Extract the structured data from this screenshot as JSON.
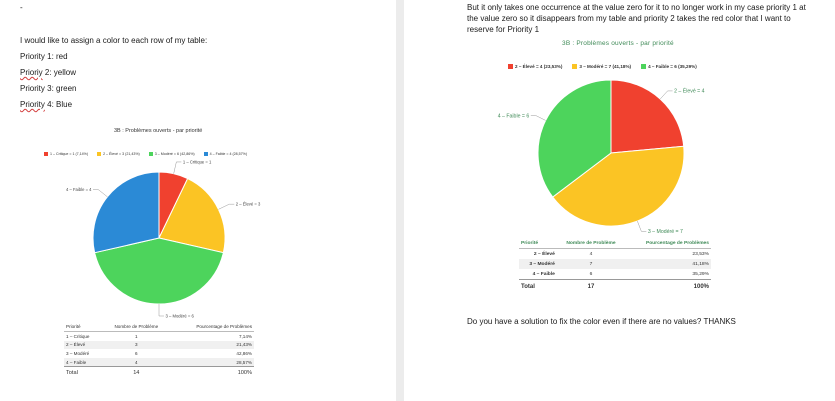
{
  "left_page": {
    "dash": "-",
    "intro": "I would like to assign a color to each row of my table:",
    "priority_lines": [
      {
        "word": "",
        "rest": "Priority 1: red"
      },
      {
        "word": "Prioriy",
        "rest": " 2: yellow"
      },
      {
        "word": "",
        "rest": "Priority 3: green"
      },
      {
        "word": "Priority",
        "rest": " 4: Blue"
      }
    ]
  },
  "right_page": {
    "para": [
      "But it only takes one occurrence at the value zero for it to no longer work in my case priority 1 at",
      "the value zero so it disappears from my table and priority 2 takes the red color that I want to",
      "reserve for Priority 1"
    ],
    "closing": "Do you have a solution to fix the color even if there are no values? THANKS"
  },
  "colors": {
    "red": "#f0412f",
    "yellow": "#fbc424",
    "green": "#4dd45c",
    "blue": "#2b8ad6"
  },
  "chart_data": [
    {
      "type": "pie",
      "title": "3B : Problèmes ouverts - par priorité",
      "legend": [
        {
          "text": "1 – Critique = 1 (7,14%)",
          "color": "#f0412f"
        },
        {
          "text": "2 – Élevé = 3 (21,43%)",
          "color": "#fbc424"
        },
        {
          "text": "3 – Modéré = 6 (42,86%)",
          "color": "#4dd45c"
        },
        {
          "text": "4 – Faible = 4 (28,57%)",
          "color": "#2b8ad6"
        }
      ],
      "slices": [
        {
          "label": "1 – Critique = 1",
          "value": 1,
          "color": "#f0412f"
        },
        {
          "label": "2 – Élevé = 3",
          "value": 3,
          "color": "#fbc424"
        },
        {
          "label": "3 – Modéré = 6",
          "value": 6,
          "color": "#4dd45c"
        },
        {
          "label": "4 – Faible = 4",
          "value": 4,
          "color": "#2b8ad6"
        }
      ],
      "table": {
        "headers": [
          "Priorité",
          "Nombre de Problème",
          "Pourcentage de Problèmes"
        ],
        "rows": [
          [
            "1 – Critique",
            "1",
            "7,14%"
          ],
          [
            "2 – Élevé",
            "3",
            "21,43%"
          ],
          [
            "3 – Modéré",
            "6",
            "42,86%"
          ],
          [
            "4 – Faible",
            "4",
            "28,57%"
          ]
        ],
        "total": [
          "Total",
          "14",
          "100%"
        ]
      }
    },
    {
      "type": "pie",
      "title": "3B : Problèmes ouverts - par priorité",
      "legend": [
        {
          "text": "2 – Élevé = 4 (23,53%)",
          "color": "#f0412f"
        },
        {
          "text": "3 – Modéré = 7 (41,18%)",
          "color": "#fbc424"
        },
        {
          "text": "4 – Faible = 6 (35,29%)",
          "color": "#4dd45c"
        }
      ],
      "slices": [
        {
          "label": "2 – Élevé = 4",
          "value": 4,
          "color": "#f0412f"
        },
        {
          "label": "3 – Modéré = 7",
          "value": 7,
          "color": "#fbc424"
        },
        {
          "label": "4 – Faible = 6",
          "value": 6,
          "color": "#4dd45c"
        }
      ],
      "table": {
        "headers": [
          "Priorité",
          "Nombre de Problème",
          "Pourcentage de Problèmes"
        ],
        "rows": [
          [
            "2 – Élevé",
            "4",
            "23,53%"
          ],
          [
            "3 – Modéré",
            "7",
            "41,18%"
          ],
          [
            "4 – Faible",
            "6",
            "35,29%"
          ]
        ],
        "total": [
          "Total",
          "17",
          "100%"
        ]
      }
    }
  ]
}
